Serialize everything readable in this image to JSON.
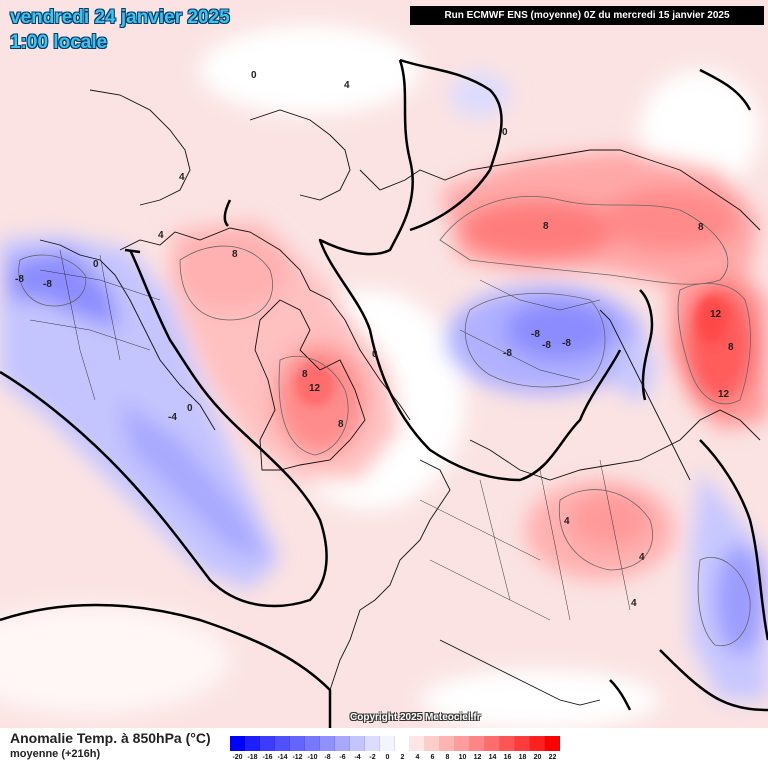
{
  "header": {
    "date_label": "vendredi 24 janvier 2025",
    "time_label": "1:00 locale",
    "run_info": "Run ECMWF ENS (moyenne) 0Z du mercredi 15 janvier 2025"
  },
  "footer": {
    "copyright": "Copyright 2025 Meteociel.fr",
    "legend_title": "Anomalie Temp. à 850hPa (°C)",
    "legend_subtitle": "moyenne  (+216h)"
  },
  "legend": {
    "labels": [
      "-20",
      "-18",
      "-16",
      "-14",
      "-12",
      "-10",
      "-8",
      "-6",
      "-4",
      "-2",
      "0",
      "2",
      "4",
      "6",
      "8",
      "10",
      "12",
      "14",
      "16",
      "18",
      "20",
      "22"
    ],
    "colors": [
      "#0000ff",
      "#1e1eff",
      "#3c3cff",
      "#5050ff",
      "#6464ff",
      "#7878ff",
      "#9090ff",
      "#a8a8ff",
      "#c4c4ff",
      "#dcdcff",
      "#f4f4ff",
      "#ffffff",
      "#ffe6e6",
      "#ffcccc",
      "#ffb4b4",
      "#ff9c9c",
      "#ff8484",
      "#ff6c6c",
      "#ff5454",
      "#ff3c3c",
      "#ff2020",
      "#ff0000"
    ]
  },
  "contour_labels": [
    {
      "text": "0",
      "lon": -10,
      "lat": 72
    },
    {
      "text": "4",
      "lon": 20,
      "lat": 66
    },
    {
      "text": "0",
      "lon": 80,
      "lat": 62
    },
    {
      "text": "8",
      "lon": 90,
      "lat": 50
    },
    {
      "text": "8",
      "lon": 115,
      "lat": 48
    },
    {
      "text": "12",
      "lon": 135,
      "lat": 42
    },
    {
      "text": "8",
      "lon": 140,
      "lat": 36
    },
    {
      "text": "12",
      "lon": 150,
      "lat": 30
    },
    {
      "text": "4",
      "lon": -60,
      "lat": 50
    },
    {
      "text": "8",
      "lon": -90,
      "lat": 60
    },
    {
      "text": "-8",
      "lon": -110,
      "lat": 40
    },
    {
      "text": "-8",
      "lon": -105,
      "lat": 45
    },
    {
      "text": "4",
      "lon": -120,
      "lat": 62
    },
    {
      "text": "0",
      "lon": -112,
      "lat": 58
    },
    {
      "text": "-4",
      "lon": -150,
      "lat": 45
    },
    {
      "text": "0",
      "lon": -155,
      "lat": 20
    },
    {
      "text": "8",
      "lon": -50,
      "lat": 75
    },
    {
      "text": "12",
      "lon": -45,
      "lat": 70
    },
    {
      "text": "8",
      "lon": -35,
      "lat": 62
    },
    {
      "text": "0",
      "lon": -10,
      "lat": 82
    },
    {
      "text": "-8",
      "lon": 80,
      "lat": 72
    },
    {
      "text": "-8",
      "lon": 90,
      "lat": 68
    },
    {
      "text": "-8",
      "lon": 100,
      "lat": 70
    },
    {
      "text": "-8",
      "lon": 70,
      "lat": 76
    },
    {
      "text": "4",
      "lon": 60,
      "lat": 40
    },
    {
      "text": "4",
      "lon": 50,
      "lat": 28
    },
    {
      "text": "4",
      "lon": 40,
      "lat": 22
    }
  ]
}
